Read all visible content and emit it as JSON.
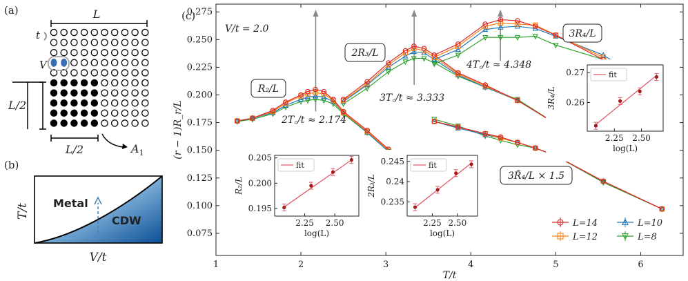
{
  "panel_a": {
    "label": "(a)",
    "L": "L",
    "t": "t",
    "V": "V",
    "L2_left": "L/2",
    "L2_bottom": "L/2",
    "A1": "A",
    "A1_sub": "1",
    "lattice": {
      "rows": 10,
      "cols": 10,
      "filled_block": 5
    }
  },
  "panel_b": {
    "label": "(b)",
    "metal": "Metal",
    "cdw": "CDW",
    "ylabel": "T/t",
    "xlabel": "V/t"
  },
  "panel_c": {
    "label": "(c)",
    "param": "V/t = 2.0",
    "annotations": {
      "R2": "R₂/L",
      "R3": "2R₃/L",
      "R4": "3R₄/L",
      "R4t": "3R̃₄/L × 1.5",
      "Tc2": "2T꜀/t ≈ 2.174",
      "Tc3": "3T꜀/t ≈ 3.333",
      "Tc4": "4T꜀/t ≈ 4.348"
    },
    "legend": [
      "L=14",
      "L=12",
      "L=10",
      "L=8"
    ]
  },
  "colors": {
    "L14": "#d62728",
    "L12": "#ff7f0e",
    "L10": "#1f77b4",
    "L8": "#2ca02c",
    "grey": "#888888",
    "fit": "#e05a6a",
    "inset_pt": "#a01c1c"
  },
  "chart_data": [
    {
      "type": "line",
      "title": "",
      "xlabel": "T/t",
      "ylabel": "(r − 1)R_r/L",
      "xlim": [
        1,
        6.5
      ],
      "ylim": [
        0.055,
        0.282
      ],
      "xticks": [
        1,
        2,
        3,
        4,
        5,
        6
      ],
      "yticks": [
        0.075,
        0.1,
        0.125,
        0.15,
        0.175,
        0.2,
        0.225,
        0.25,
        0.275
      ],
      "groups": [
        {
          "name": "R2/L",
          "x": [
            1.25,
            1.43,
            1.67,
            1.82,
            2.0,
            2.08,
            2.17,
            2.27,
            2.38,
            2.5,
            2.78,
            3.03
          ],
          "series": [
            {
              "name": "L=14",
              "values": [
                0.1765,
                0.179,
                0.186,
                0.1935,
                0.2,
                0.203,
                0.205,
                0.203,
                0.196,
                0.185,
                0.168,
                0.151
              ]
            },
            {
              "name": "L=12",
              "values": [
                0.1765,
                0.179,
                0.185,
                0.1925,
                0.199,
                0.201,
                0.202,
                0.201,
                0.195,
                0.184,
                0.167,
                0.15
              ]
            },
            {
              "name": "L=10",
              "values": [
                0.1765,
                0.179,
                0.184,
                0.1905,
                0.196,
                0.198,
                0.199,
                0.198,
                0.194,
                0.184,
                0.166,
                0.149
              ]
            },
            {
              "name": "L=8",
              "values": [
                0.176,
                0.178,
                0.183,
                0.189,
                0.194,
                0.195,
                0.196,
                0.195,
                0.192,
                0.183,
                0.166,
                0.149
              ]
            }
          ]
        },
        {
          "name": "2R3/L",
          "x": [
            2.5,
            2.78,
            3.03,
            3.23,
            3.33,
            3.45,
            3.57,
            3.85,
            4.17,
            4.55,
            5.0
          ],
          "series": [
            {
              "name": "L=14",
              "values": [
                0.196,
                0.212,
                0.229,
                0.24,
                0.244,
                0.242,
                0.236,
                0.22,
                0.209,
                0.195,
                0.174
              ]
            },
            {
              "name": "L=12",
              "values": [
                0.195,
                0.21,
                0.227,
                0.238,
                0.242,
                0.24,
                0.234,
                0.219,
                0.208,
                0.195,
                0.174
              ]
            },
            {
              "name": "L=10",
              "values": [
                0.194,
                0.209,
                0.225,
                0.235,
                0.239,
                0.238,
                0.232,
                0.218,
                0.207,
                0.195,
                0.174
              ]
            },
            {
              "name": "L=8",
              "values": [
                0.192,
                0.206,
                0.221,
                0.23,
                0.233,
                0.233,
                0.229,
                0.217,
                0.207,
                0.196,
                0.174
              ]
            }
          ]
        },
        {
          "name": "3R4/L",
          "x": [
            3.57,
            3.85,
            4.17,
            4.35,
            4.55,
            4.76,
            5.0,
            5.56,
            6.25
          ],
          "series": [
            {
              "name": "L=14",
              "values": [
                0.236,
                0.246,
                0.264,
                0.268,
                0.267,
                0.262,
                0.254,
                0.232,
                0.203
              ]
            },
            {
              "name": "L=12",
              "values": [
                0.234,
                0.244,
                0.262,
                0.265,
                0.264,
                0.263,
                0.254,
                0.234,
                0.203
              ]
            },
            {
              "name": "L=10",
              "values": [
                0.232,
                0.241,
                0.259,
                0.261,
                0.262,
                0.26,
                0.253,
                0.236,
                0.203
              ]
            },
            {
              "name": "L=8",
              "values": [
                0.228,
                0.236,
                0.252,
                0.252,
                0.252,
                0.253,
                0.245,
                0.232,
                0.203
              ]
            }
          ]
        },
        {
          "name": "3R4t/L x 1.5",
          "x": [
            3.57,
            3.85,
            4.17,
            4.35,
            4.55,
            4.76,
            5.0,
            5.56,
            6.25
          ],
          "series": [
            {
              "name": "L=14",
              "values": [
                0.176,
                0.171,
                0.165,
                0.162,
                0.157,
                0.152,
                0.145,
                0.122,
                0.097
              ]
            },
            {
              "name": "L=12",
              "values": [
                0.176,
                0.171,
                0.165,
                0.161,
                0.157,
                0.152,
                0.145,
                0.122,
                0.097
              ]
            },
            {
              "name": "L=10",
              "values": [
                0.176,
                0.17,
                0.164,
                0.161,
                0.157,
                0.152,
                0.145,
                0.122,
                0.097
              ]
            },
            {
              "name": "L=8",
              "values": [
                0.178,
                0.172,
                0.163,
                0.159,
                0.155,
                0.152,
                0.145,
                0.121,
                0.097
              ]
            }
          ]
        }
      ],
      "vlines": [
        2.174,
        3.333,
        4.348
      ]
    },
    {
      "type": "scatter",
      "name": "inset R2/L",
      "xlabel": "log(L)",
      "ylabel": "R₂/L",
      "legend": "fit",
      "xlim": [
        2.0,
        2.7
      ],
      "ylim": [
        0.1935,
        0.2055
      ],
      "xticks": [
        2.25,
        2.5
      ],
      "yticks": [
        0.195,
        0.2,
        0.205
      ],
      "x": [
        2.079,
        2.303,
        2.485,
        2.639
      ],
      "y": [
        0.1952,
        0.1995,
        0.2022,
        0.2046
      ],
      "fit": [
        [
          2.079,
          0.1953
        ],
        [
          2.639,
          0.2046
        ]
      ]
    },
    {
      "type": "scatter",
      "name": "inset 2R3/L",
      "xlabel": "log(L)",
      "ylabel": "2R₃/L",
      "legend": "fit",
      "xlim": [
        2.0,
        2.7
      ],
      "ylim": [
        0.2315,
        0.2465
      ],
      "xticks": [
        2.25,
        2.5
      ],
      "yticks": [
        0.235,
        0.24,
        0.245
      ],
      "x": [
        2.079,
        2.303,
        2.485,
        2.639
      ],
      "y": [
        0.2337,
        0.238,
        0.2421,
        0.2443
      ],
      "fit": [
        [
          2.079,
          0.2336
        ],
        [
          2.639,
          0.2446
        ]
      ]
    },
    {
      "type": "scatter",
      "name": "inset 3R4/L",
      "xlabel": "log(L)",
      "ylabel": "3R₄/L",
      "legend": "fit",
      "xlim": [
        2.0,
        2.7
      ],
      "ylim": [
        0.2505,
        0.2725
      ],
      "xticks": [
        2.25,
        2.5
      ],
      "yticks": [
        0.26,
        0.27
      ],
      "x": [
        2.079,
        2.303,
        2.485,
        2.639
      ],
      "y": [
        0.2523,
        0.2605,
        0.2637,
        0.2685
      ],
      "fit": [
        [
          2.079,
          0.2527
        ],
        [
          2.639,
          0.269
        ]
      ]
    }
  ]
}
